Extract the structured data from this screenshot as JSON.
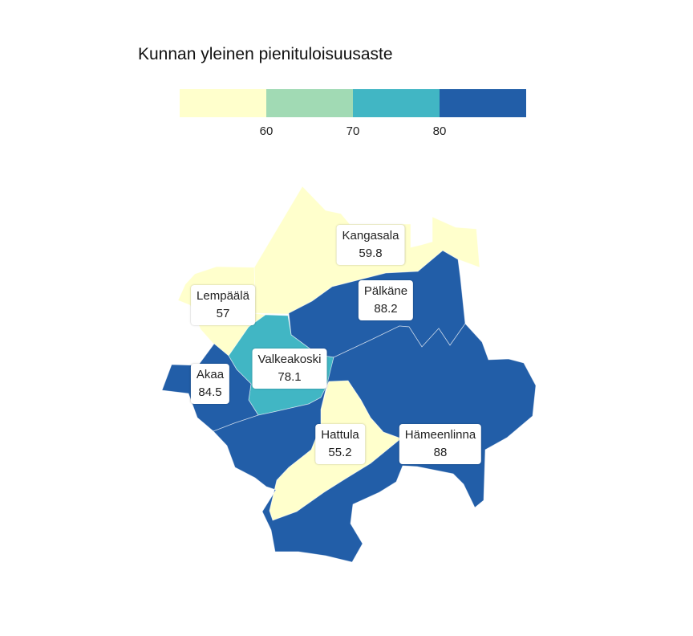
{
  "title": "Kunnan yleinen pienituloisuusaste",
  "legend": {
    "colors": [
      "#ffffcc",
      "#a1dab4",
      "#41b6c4",
      "#225ea8"
    ],
    "ticks": [
      "60",
      "70",
      "80"
    ]
  },
  "municipalities": [
    {
      "name": "Kangasala",
      "value": "59.8",
      "color": "#ffffcc"
    },
    {
      "name": "Pälkäne",
      "value": "88.2",
      "color": "#225ea8"
    },
    {
      "name": "Lempäälä",
      "value": "57",
      "color": "#ffffcc"
    },
    {
      "name": "Valkeakoski",
      "value": "78.1",
      "color": "#41b6c4"
    },
    {
      "name": "Akaa",
      "value": "84.5",
      "color": "#225ea8"
    },
    {
      "name": "Hattula",
      "value": "55.2",
      "color": "#ffffcc"
    },
    {
      "name": "Hämeenlinna",
      "value": "88",
      "color": "#225ea8"
    }
  ]
}
